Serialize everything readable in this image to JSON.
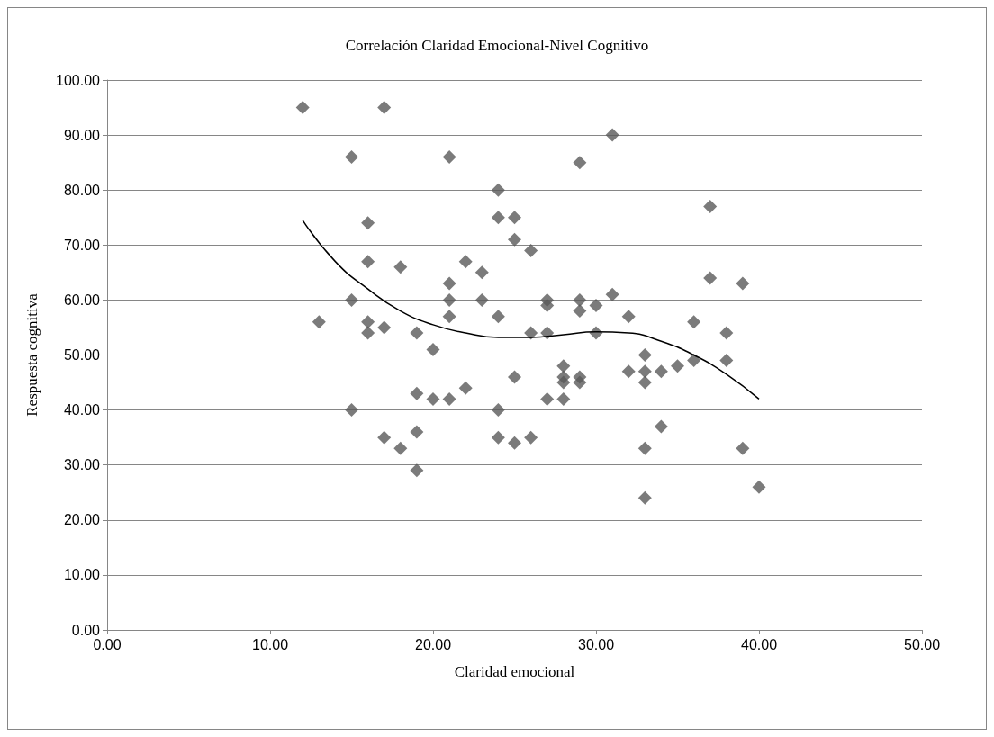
{
  "chart_data": {
    "type": "scatter",
    "title": "Correlación Claridad Emocional-Nivel Cognitivo",
    "xlabel": "Claridad emocional",
    "ylabel": "Respuesta cognitiva",
    "xlim": [
      0,
      50
    ],
    "xticks": [
      {
        "value": 0,
        "label": "0.00"
      },
      {
        "value": 10,
        "label": "10.00"
      },
      {
        "value": 20,
        "label": "20.00"
      },
      {
        "value": 30,
        "label": "30.00"
      },
      {
        "value": 40,
        "label": "40.00"
      },
      {
        "value": 50,
        "label": "50.00"
      }
    ],
    "ylim": [
      0,
      100
    ],
    "yticks": [
      {
        "value": 0,
        "label": "0.00"
      },
      {
        "value": 10,
        "label": "10.00"
      },
      {
        "value": 20,
        "label": "20.00"
      },
      {
        "value": 30,
        "label": "30.00"
      },
      {
        "value": 40,
        "label": "40.00"
      },
      {
        "value": 50,
        "label": "50.00"
      },
      {
        "value": 60,
        "label": "60.00"
      },
      {
        "value": 70,
        "label": "70.00"
      },
      {
        "value": 80,
        "label": "80.00"
      },
      {
        "value": 90,
        "label": "90.00"
      },
      {
        "value": 100,
        "label": "100.00"
      }
    ],
    "grid": "y",
    "marker": "diamond",
    "series": [
      {
        "color": "#5a5a5a",
        "x": [
          12,
          13,
          15,
          15,
          15,
          16,
          16,
          16,
          16,
          17,
          17,
          17,
          18,
          18,
          19,
          19,
          19,
          19,
          20,
          20,
          21,
          21,
          21,
          21,
          21,
          22,
          22,
          23,
          23,
          24,
          24,
          24,
          24,
          24,
          25,
          25,
          25,
          25,
          26,
          26,
          26,
          27,
          27,
          27,
          27,
          28,
          28,
          28,
          28,
          29,
          29,
          29,
          29,
          29,
          30,
          30,
          31,
          31,
          32,
          32,
          33,
          33,
          33,
          33,
          33,
          34,
          34,
          35,
          36,
          36,
          37,
          37,
          38,
          38,
          39,
          39,
          40
        ],
        "values": [
          95,
          56,
          86,
          60,
          40,
          74,
          67,
          56,
          54,
          95,
          55,
          35,
          66,
          33,
          54,
          43,
          36,
          29,
          51,
          42,
          86,
          63,
          60,
          57,
          42,
          67,
          44,
          65,
          60,
          80,
          75,
          57,
          40,
          35,
          75,
          71,
          46,
          34,
          69,
          54,
          35,
          60,
          59,
          54,
          42,
          48,
          46,
          45,
          42,
          85,
          60,
          58,
          46,
          45,
          59,
          54,
          90,
          61,
          57,
          47,
          50,
          47,
          45,
          33,
          24,
          47,
          37,
          48,
          56,
          49,
          77,
          64,
          54,
          49,
          63,
          33,
          26
        ]
      },
      {
        "type": "line",
        "color": "#000000",
        "marker": "none",
        "x": [
          12,
          14,
          16,
          18,
          20,
          22,
          24,
          26,
          28,
          30,
          32,
          34,
          36,
          38,
          40
        ],
        "values": [
          74.5,
          67,
          62,
          58,
          55.5,
          54,
          53.2,
          53.2,
          53.7,
          54.2,
          54,
          52.5,
          50,
          46.5,
          42
        ]
      }
    ]
  }
}
